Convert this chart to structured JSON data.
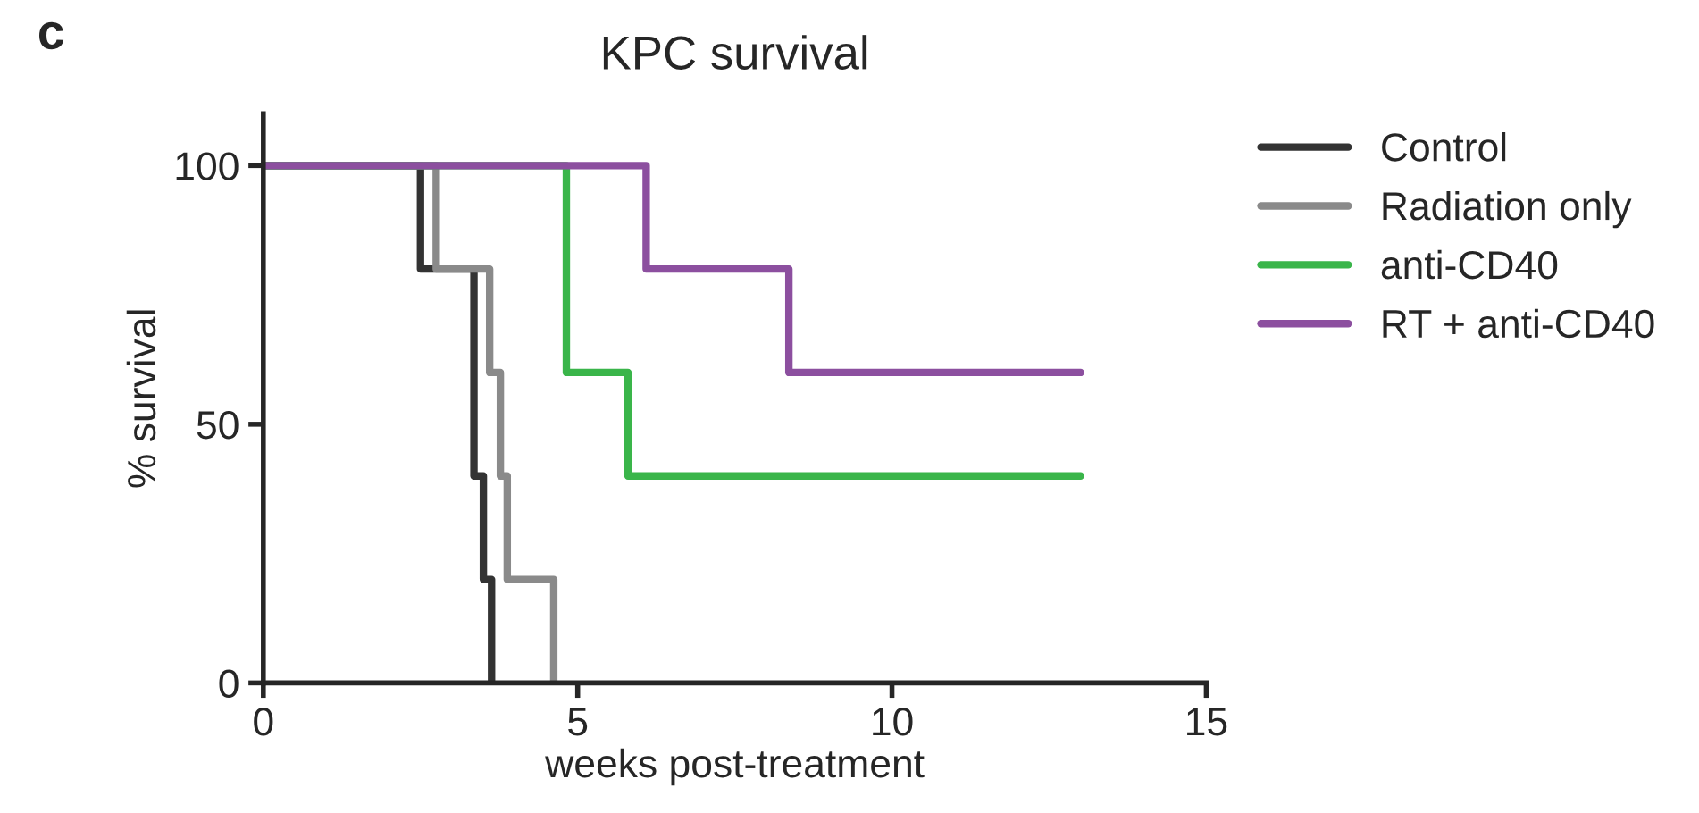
{
  "chart_data": {
    "type": "step",
    "title": "KPC survival",
    "xlabel": "weeks post-treatment",
    "ylabel": "% survival",
    "annotations": [
      "c"
    ],
    "xlim": [
      0,
      15
    ],
    "xticks": [
      0,
      5,
      10,
      15
    ],
    "ylim": [
      0,
      110
    ],
    "yticks": [
      0,
      50,
      100
    ],
    "grid": false,
    "legend": "right",
    "line_style": "solid",
    "marker": "none",
    "series": [
      {
        "name": "Control",
        "color": "#333333",
        "x": [
          0,
          2.5,
          3.35,
          3.5,
          3.63
        ],
        "values": [
          100,
          80,
          40,
          20,
          0
        ]
      },
      {
        "name": "Radiation only",
        "color": "#8a8a8a",
        "x": [
          0,
          2.75,
          3.6,
          3.77,
          3.88,
          4.62
        ],
        "values": [
          100,
          80,
          60,
          40,
          20,
          0
        ]
      },
      {
        "name": "anti-CD40",
        "color": "#3ab54a",
        "x": [
          0,
          4.82,
          5.8,
          13
        ],
        "values": [
          100,
          60,
          40,
          40
        ]
      },
      {
        "name": "RT + anti-CD40",
        "color": "#8c4f9f",
        "x": [
          0,
          6.09,
          8.36,
          13
        ],
        "values": [
          100,
          80,
          60,
          60
        ]
      }
    ]
  }
}
